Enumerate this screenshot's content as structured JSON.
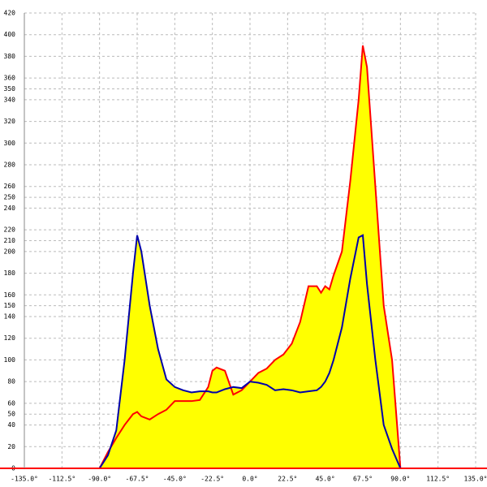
{
  "chart_data": {
    "type": "area",
    "x": [
      -90,
      -85,
      -80,
      -75,
      -70,
      -67.5,
      -65,
      -60,
      -55,
      -50,
      -45,
      -40,
      -35,
      -30,
      -25,
      -22.5,
      -20,
      -15,
      -10,
      -5,
      0,
      5,
      10,
      15,
      20,
      25,
      30,
      35,
      40,
      42.5,
      45,
      47.5,
      50,
      55,
      60,
      65,
      67.5,
      70,
      75,
      80,
      85,
      90
    ],
    "series": [
      {
        "color": "#ff0000",
        "fill": "#ffff00",
        "values": [
          0,
          15,
          28,
          40,
          50,
          52,
          48,
          45,
          50,
          54,
          62,
          62,
          62,
          63,
          75,
          90,
          93,
          90,
          68,
          72,
          80,
          88,
          92,
          100,
          105,
          115,
          135,
          168,
          168,
          162,
          168,
          165,
          178,
          200,
          265,
          340,
          390,
          370,
          260,
          150,
          100,
          0
        ]
      },
      {
        "color": "#0000aa",
        "fill": "#ffff00",
        "values": [
          0,
          12,
          35,
          100,
          180,
          215,
          200,
          150,
          110,
          82,
          75,
          72,
          70,
          71,
          71,
          70,
          70,
          73,
          75,
          74,
          80,
          79,
          77,
          72,
          73,
          72,
          70,
          71,
          72,
          75,
          80,
          88,
          100,
          130,
          175,
          213,
          215,
          170,
          100,
          40,
          18,
          0
        ]
      }
    ],
    "xlim": [
      -135,
      135
    ],
    "xticks": [
      {
        "value": -135,
        "label": "-135.0°"
      },
      {
        "value": -112.5,
        "label": "-112.5°"
      },
      {
        "value": -90,
        "label": "-90.0°"
      },
      {
        "value": -67.5,
        "label": "-67.5°"
      },
      {
        "value": -45,
        "label": "-45.0°"
      },
      {
        "value": -22.5,
        "label": "-22.5°"
      },
      {
        "value": 0,
        "label": "0.0°"
      },
      {
        "value": 22.5,
        "label": "22.5°"
      },
      {
        "value": 45,
        "label": "45.0°"
      },
      {
        "value": 67.5,
        "label": "67.5°"
      },
      {
        "value": 90,
        "label": "90.0°"
      },
      {
        "value": 112.5,
        "label": "112.5°"
      },
      {
        "value": 135,
        "label": "135.0°"
      }
    ],
    "ylim": [
      0,
      420
    ],
    "yticks": [
      0,
      20,
      40,
      50,
      60,
      80,
      100,
      120,
      140,
      150,
      160,
      180,
      200,
      210,
      220,
      240,
      250,
      260,
      280,
      300,
      320,
      340,
      350,
      360,
      380,
      400,
      420
    ],
    "grid": true,
    "axis_color": "#ff0000"
  }
}
